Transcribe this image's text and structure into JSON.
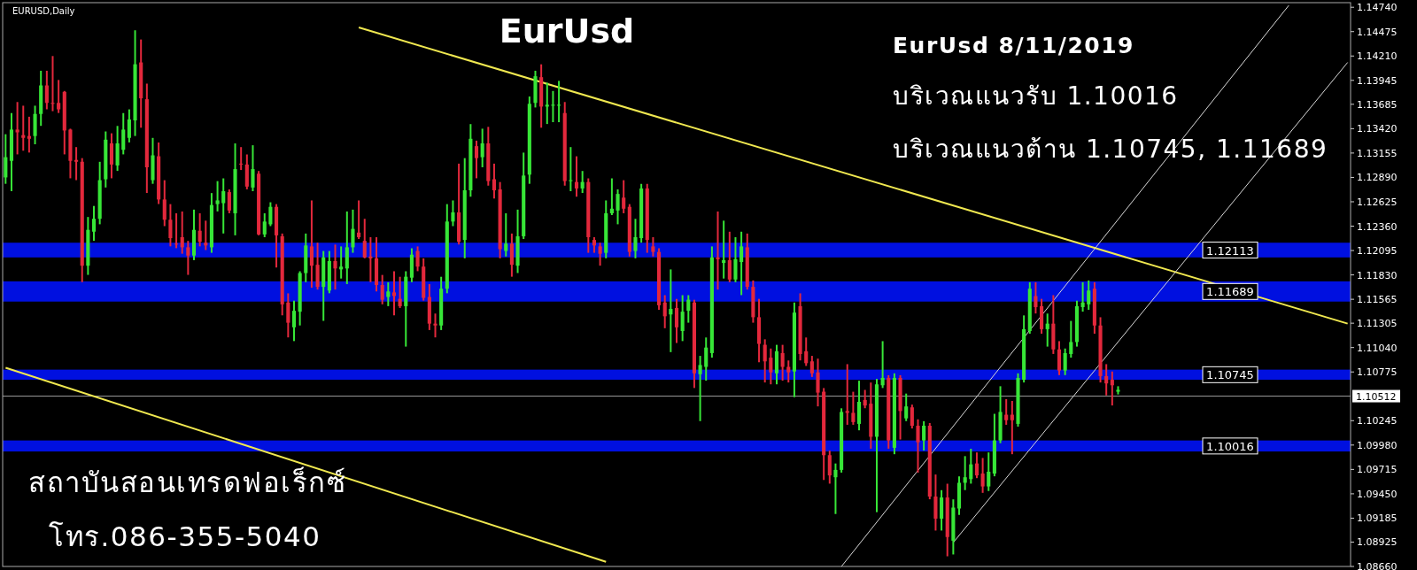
{
  "chart_data": {
    "type": "candlestick",
    "title": "EurUsd",
    "categories": [
      null,
      null,
      null,
      null,
      null,
      null,
      null,
      null,
      null,
      null,
      null,
      null,
      null,
      null,
      null,
      null,
      null,
      null,
      null,
      null,
      null,
      null,
      null,
      null,
      null,
      null,
      null,
      null,
      null,
      null,
      null,
      null,
      null,
      null,
      null,
      null,
      null,
      null,
      null,
      null,
      null,
      null,
      null,
      null,
      null,
      null,
      null,
      null,
      null,
      null,
      null,
      null,
      null,
      null,
      null,
      null,
      null,
      null,
      null,
      null,
      null,
      null,
      null,
      null,
      null,
      null,
      null,
      null,
      null,
      null,
      null,
      null,
      null,
      null,
      null,
      null,
      null,
      null,
      null,
      null,
      null,
      null,
      null,
      null,
      null,
      null,
      null,
      null,
      null,
      null,
      null,
      null,
      null,
      null,
      null,
      null,
      null,
      null,
      null,
      null,
      null,
      null,
      null,
      null,
      null,
      null,
      null,
      null,
      null,
      null,
      null,
      null,
      null,
      null,
      null,
      null,
      null,
      null,
      null,
      null,
      null,
      null,
      null,
      null,
      null,
      null,
      null,
      null,
      null,
      null,
      null,
      null,
      null,
      null,
      null,
      null,
      null,
      null,
      null,
      null,
      null,
      null,
      null,
      null,
      null,
      null,
      null,
      null,
      null,
      null,
      null,
      null,
      null,
      null,
      null,
      null,
      null,
      null,
      null,
      null,
      null,
      null,
      null,
      null,
      null,
      null,
      null,
      null,
      null,
      null,
      null,
      null,
      null,
      null,
      null,
      null,
      null,
      null,
      null,
      null,
      null,
      null,
      null,
      null,
      null,
      null,
      null,
      null,
      null,
      null,
      null,
      null,
      null,
      null,
      null,
      null,
      null,
      null,
      null,
      null,
      null,
      null,
      null,
      null,
      null,
      null,
      null,
      null,
      null,
      null,
      null,
      null,
      null,
      null,
      null,
      null,
      null,
      null,
      null,
      null,
      null,
      null,
      null,
      null,
      null,
      null,
      null,
      null,
      null
    ],
    "ohlc": [
      [
        1.1289,
        1.1335,
        1.1283,
        1.1311
      ],
      [
        1.1307,
        1.1358,
        1.1275,
        1.1341
      ],
      [
        1.1341,
        1.137,
        1.1315,
        1.1338
      ],
      [
        1.1335,
        1.1366,
        1.1319,
        1.1332
      ],
      [
        1.1334,
        1.1354,
        1.1317,
        1.1331
      ],
      [
        1.1334,
        1.1366,
        1.1326,
        1.1358
      ],
      [
        1.1358,
        1.1404,
        1.1346,
        1.1389
      ],
      [
        1.1389,
        1.1404,
        1.1364,
        1.137
      ],
      [
        1.137,
        1.142,
        1.1362,
        1.1369
      ],
      [
        1.137,
        1.1394,
        1.136,
        1.1363
      ],
      [
        1.1382,
        1.1382,
        1.1315,
        1.134
      ],
      [
        1.1341,
        1.1341,
        1.1289,
        1.1307
      ],
      [
        1.1308,
        1.1321,
        1.1287,
        1.1306
      ],
      [
        1.1306,
        1.1309,
        1.1176,
        1.1193
      ],
      [
        1.1193,
        1.1245,
        1.1184,
        1.1232
      ],
      [
        1.123,
        1.1257,
        1.1221,
        1.1244
      ],
      [
        1.1244,
        1.1305,
        1.1239,
        1.1286
      ],
      [
        1.1287,
        1.1338,
        1.1279,
        1.133
      ],
      [
        1.1326,
        1.1336,
        1.1289,
        1.1303
      ],
      [
        1.1302,
        1.1344,
        1.1297,
        1.1326
      ],
      [
        1.1319,
        1.1358,
        1.1315,
        1.1341
      ],
      [
        1.1332,
        1.1362,
        1.1328,
        1.1352
      ],
      [
        1.1351,
        1.1448,
        1.1335,
        1.1412
      ],
      [
        1.1414,
        1.1438,
        1.1344,
        1.1375
      ],
      [
        1.1374,
        1.139,
        1.1273,
        1.13
      ],
      [
        1.1286,
        1.1331,
        1.1283,
        1.1313
      ],
      [
        1.1312,
        1.1326,
        1.1261,
        1.1265
      ],
      [
        1.1265,
        1.1285,
        1.1237,
        1.1243
      ],
      [
        1.1243,
        1.1259,
        1.1215,
        1.1223
      ],
      [
        1.1217,
        1.1249,
        1.1213,
        1.1216
      ],
      [
        1.1224,
        1.1251,
        1.1207,
        1.1213
      ],
      [
        1.1213,
        1.1219,
        1.1184,
        1.1204
      ],
      [
        1.1204,
        1.1253,
        1.12,
        1.1232
      ],
      [
        1.1231,
        1.1249,
        1.1215,
        1.1219
      ],
      [
        1.1218,
        1.1241,
        1.1211,
        1.1215
      ],
      [
        1.1213,
        1.1271,
        1.1208,
        1.1259
      ],
      [
        1.126,
        1.1284,
        1.1253,
        1.1264
      ],
      [
        1.1261,
        1.1287,
        1.1229,
        1.1274
      ],
      [
        1.1273,
        1.1275,
        1.1251,
        1.1253
      ],
      [
        1.125,
        1.1325,
        1.1227,
        1.1298
      ],
      [
        1.1304,
        1.1321,
        1.1298,
        1.1303
      ],
      [
        1.1303,
        1.1313,
        1.1277,
        1.1279
      ],
      [
        1.1278,
        1.1323,
        1.1275,
        1.1298
      ],
      [
        1.1293,
        1.1295,
        1.1227,
        1.1227
      ],
      [
        1.1227,
        1.1249,
        1.1225,
        1.1241
      ],
      [
        1.1238,
        1.1261,
        1.1237,
        1.1257
      ],
      [
        1.1257,
        1.1259,
        1.1192,
        1.1226
      ],
      [
        1.1225,
        1.1227,
        1.114,
        1.1151
      ],
      [
        1.1153,
        1.1162,
        1.1116,
        1.1131
      ],
      [
        1.1126,
        1.1154,
        1.1112,
        1.1144
      ],
      [
        1.1143,
        1.1186,
        1.1129,
        1.1185
      ],
      [
        1.1185,
        1.1227,
        1.1176,
        1.1215
      ],
      [
        1.1214,
        1.1263,
        1.117,
        1.1193
      ],
      [
        1.1194,
        1.1217,
        1.1168,
        1.117
      ],
      [
        1.117,
        1.1208,
        1.1134,
        1.1202
      ],
      [
        1.1166,
        1.1208,
        1.1164,
        1.1198
      ],
      [
        1.1198,
        1.1215,
        1.1168,
        1.119
      ],
      [
        1.1189,
        1.1213,
        1.118,
        1.1192
      ],
      [
        1.119,
        1.1251,
        1.1174,
        1.1213
      ],
      [
        1.1213,
        1.1253,
        1.1208,
        1.1233
      ],
      [
        1.1229,
        1.1263,
        1.1223,
        1.1224
      ],
      [
        1.122,
        1.1243,
        1.1202,
        1.1202
      ],
      [
        1.1203,
        1.1223,
        1.1176,
        1.1201
      ],
      [
        1.1201,
        1.1223,
        1.1166,
        1.1172
      ],
      [
        1.1172,
        1.1182,
        1.1152,
        1.1156
      ],
      [
        1.1159,
        1.1174,
        1.115,
        1.1165
      ],
      [
        1.1164,
        1.1186,
        1.114,
        1.116
      ],
      [
        1.1157,
        1.118,
        1.1148,
        1.1149
      ],
      [
        1.1149,
        1.1186,
        1.1106,
        1.1181
      ],
      [
        1.118,
        1.1211,
        1.1176,
        1.1205
      ],
      [
        1.1209,
        1.1213,
        1.1188,
        1.1192
      ],
      [
        1.1192,
        1.12,
        1.1156,
        1.1158
      ],
      [
        1.1159,
        1.1172,
        1.1124,
        1.113
      ],
      [
        1.113,
        1.114,
        1.1116,
        1.1128
      ],
      [
        1.1128,
        1.118,
        1.1124,
        1.1168
      ],
      [
        1.1168,
        1.1259,
        1.1164,
        1.1241
      ],
      [
        1.1241,
        1.1263,
        1.1237,
        1.1251
      ],
      [
        1.1251,
        1.1303,
        1.1217,
        1.1219
      ],
      [
        1.1221,
        1.1309,
        1.1202,
        1.1275
      ],
      [
        1.1275,
        1.1346,
        1.1269,
        1.1331
      ],
      [
        1.1323,
        1.1328,
        1.1289,
        1.131
      ],
      [
        1.1311,
        1.1341,
        1.1301,
        1.1326
      ],
      [
        1.1326,
        1.1343,
        1.1281,
        1.1285
      ],
      [
        1.1287,
        1.1303,
        1.1267,
        1.1275
      ],
      [
        1.1276,
        1.1283,
        1.1202,
        1.1211
      ],
      [
        1.1209,
        1.1249,
        1.1204,
        1.1217
      ],
      [
        1.1217,
        1.1227,
        1.1182,
        1.1194
      ],
      [
        1.1193,
        1.1253,
        1.1186,
        1.1225
      ],
      [
        1.1225,
        1.1315,
        1.1223,
        1.1291
      ],
      [
        1.1292,
        1.1376,
        1.1283,
        1.1369
      ],
      [
        1.137,
        1.1404,
        1.1366,
        1.1399
      ],
      [
        1.1398,
        1.1411,
        1.1344,
        1.1366
      ],
      [
        1.1366,
        1.1391,
        1.1348,
        1.1368
      ],
      [
        1.1367,
        1.1382,
        1.135,
        1.1368
      ],
      [
        1.1367,
        1.1393,
        1.135,
        1.1368
      ],
      [
        1.1359,
        1.137,
        1.1281,
        1.1285
      ],
      [
        1.1285,
        1.1321,
        1.1275,
        1.1286
      ],
      [
        1.1284,
        1.1311,
        1.1269,
        1.1277
      ],
      [
        1.1277,
        1.1295,
        1.1273,
        1.1284
      ],
      [
        1.1284,
        1.1287,
        1.1208,
        1.1224
      ],
      [
        1.1221,
        1.1223,
        1.1208,
        1.1215
      ],
      [
        1.1214,
        1.1217,
        1.1194,
        1.1206
      ],
      [
        1.1207,
        1.1263,
        1.1202,
        1.125
      ],
      [
        1.125,
        1.1287,
        1.1249,
        1.1255
      ],
      [
        1.1253,
        1.1275,
        1.1239,
        1.1271
      ],
      [
        1.1267,
        1.1285,
        1.1251,
        1.1255
      ],
      [
        1.1257,
        1.1259,
        1.1204,
        1.1208
      ],
      [
        1.1209,
        1.1243,
        1.1202,
        1.1224
      ],
      [
        1.1223,
        1.1281,
        1.1219,
        1.1277
      ],
      [
        1.1277,
        1.1281,
        1.1208,
        1.1221
      ],
      [
        1.1214,
        1.1223,
        1.1204,
        1.1208
      ],
      [
        1.1208,
        1.1211,
        1.1146,
        1.115
      ],
      [
        1.1153,
        1.116,
        1.1126,
        1.1138
      ],
      [
        1.114,
        1.1188,
        1.11,
        1.1146
      ],
      [
        1.1147,
        1.1156,
        1.111,
        1.1126
      ],
      [
        1.1122,
        1.116,
        1.1112,
        1.1143
      ],
      [
        1.1144,
        1.116,
        1.1132,
        1.1156
      ],
      [
        1.1153,
        1.1155,
        1.1061,
        1.1076
      ],
      [
        1.1075,
        1.1094,
        1.1025,
        1.1085
      ],
      [
        1.1083,
        1.1114,
        1.1069,
        1.1104
      ],
      [
        1.1098,
        1.1213,
        1.1094,
        1.1202
      ],
      [
        1.1202,
        1.1251,
        1.1168,
        1.12
      ],
      [
        1.1196,
        1.1241,
        1.118,
        1.1199
      ],
      [
        1.1199,
        1.1229,
        1.1176,
        1.1178
      ],
      [
        1.1178,
        1.1223,
        1.1176,
        1.12
      ],
      [
        1.1197,
        1.1229,
        1.1162,
        1.1214
      ],
      [
        1.1213,
        1.1227,
        1.1168,
        1.117
      ],
      [
        1.117,
        1.1176,
        1.1132,
        1.1137
      ],
      [
        1.1137,
        1.1156,
        1.1089,
        1.1108
      ],
      [
        1.1107,
        1.1112,
        1.1067,
        1.1089
      ],
      [
        1.1093,
        1.1102,
        1.1065,
        1.1077
      ],
      [
        1.1076,
        1.1106,
        1.1065,
        1.11
      ],
      [
        1.1098,
        1.1106,
        1.1069,
        1.1083
      ],
      [
        1.1083,
        1.1089,
        1.1067,
        1.1077
      ],
      [
        1.1078,
        1.1152,
        1.1051,
        1.1142
      ],
      [
        1.1149,
        1.1162,
        1.1091,
        1.1097
      ],
      [
        1.11,
        1.1114,
        1.1085,
        1.1087
      ],
      [
        1.1089,
        1.1094,
        1.1073,
        1.1076
      ],
      [
        1.1077,
        1.1091,
        1.1041,
        1.1055
      ],
      [
        1.1056,
        1.1059,
        1.0961,
        1.0987
      ],
      [
        1.0987,
        1.0991,
        1.0957,
        1.0965
      ],
      [
        1.0963,
        1.0977,
        1.0924,
        1.0971
      ],
      [
        1.0971,
        1.1037,
        1.0969,
        1.1034
      ],
      [
        1.1035,
        1.1085,
        1.1021,
        1.1033
      ],
      [
        1.1033,
        1.1055,
        1.1021,
        1.1023
      ],
      [
        1.1021,
        1.1067,
        1.1015,
        1.1045
      ],
      [
        1.1047,
        1.1057,
        1.1039,
        1.1041
      ],
      [
        1.1043,
        1.1065,
        1.0995,
        1.1007
      ],
      [
        1.1007,
        1.1069,
        1.0926,
        1.1064
      ],
      [
        1.1063,
        1.111,
        1.1061,
        1.1071
      ],
      [
        1.1071,
        1.1073,
        1.0995,
        1.1003
      ],
      [
        1.0995,
        1.1075,
        1.0989,
        1.1071
      ],
      [
        1.1071,
        1.1073,
        1.1005,
        1.1035
      ],
      [
        1.1027,
        1.1053,
        1.1025,
        1.104
      ],
      [
        1.1039,
        1.1041,
        1.1017,
        1.1019
      ],
      [
        1.1019,
        1.1025,
        1.0969,
        1.1001
      ],
      [
        1.1003,
        1.1023,
        1.0993,
        1.1019
      ],
      [
        1.1019,
        1.1021,
        1.094,
        1.0942
      ],
      [
        1.0942,
        1.0965,
        1.0906,
        1.0918
      ],
      [
        1.0918,
        1.0948,
        1.0906,
        1.0941
      ],
      [
        1.0941,
        1.0955,
        1.0878,
        1.0898
      ],
      [
        1.0894,
        1.0938,
        1.088,
        1.093
      ],
      [
        1.0929,
        1.0963,
        1.0923,
        1.0957
      ],
      [
        1.0957,
        1.0985,
        1.095,
        1.0963
      ],
      [
        1.0961,
        1.0993,
        1.0957,
        1.0977
      ],
      [
        1.0978,
        1.0989,
        1.0963,
        1.0965
      ],
      [
        1.0967,
        1.0983,
        1.0947,
        1.0953
      ],
      [
        1.0953,
        1.0989,
        1.0949,
        1.0969
      ],
      [
        1.0967,
        1.1031,
        1.0965,
        1.1003
      ],
      [
        1.1003,
        1.1061,
        1.1001,
        1.1034
      ],
      [
        1.1031,
        1.1047,
        1.1021,
        1.1025
      ],
      [
        1.1031,
        1.1045,
        1.0989,
        1.1025
      ],
      [
        1.1021,
        1.1075,
        1.1019,
        1.1071
      ],
      [
        1.1069,
        1.1138,
        1.1067,
        1.1124
      ],
      [
        1.1122,
        1.1174,
        1.112,
        1.1168
      ],
      [
        1.116,
        1.1174,
        1.1142,
        1.1148
      ],
      [
        1.1149,
        1.1156,
        1.112,
        1.1124
      ],
      [
        1.1124,
        1.114,
        1.1106,
        1.113
      ],
      [
        1.113,
        1.116,
        1.1098,
        1.1102
      ],
      [
        1.1102,
        1.111,
        1.1075,
        1.1079
      ],
      [
        1.1079,
        1.1102,
        1.1075,
        1.1098
      ],
      [
        1.1097,
        1.1132,
        1.1094,
        1.111
      ],
      [
        1.111,
        1.1154,
        1.1106,
        1.1149
      ],
      [
        1.1148,
        1.1174,
        1.1144,
        1.1153
      ],
      [
        1.1151,
        1.1176,
        1.1146,
        1.1166
      ],
      [
        1.1168,
        1.1174,
        1.112,
        1.1128
      ],
      [
        1.1128,
        1.1136,
        1.1067,
        1.1073
      ],
      [
        1.1073,
        1.1085,
        1.1053,
        1.1065
      ],
      [
        1.1069,
        1.1077,
        1.1042,
        1.1063
      ],
      [
        1.1056,
        1.1061,
        1.1054,
        1.1058
      ],
      null,
      null,
      null,
      null,
      null,
      null,
      null,
      null,
      null,
      null,
      null,
      null,
      null,
      null,
      null,
      null,
      null,
      null,
      null,
      null,
      null,
      null,
      null,
      null,
      null,
      null,
      null,
      null,
      null,
      null,
      null,
      null,
      null,
      null,
      null,
      null,
      null,
      null,
      null
    ],
    "series": [
      {
        "type": "line",
        "color": "#f0e850",
        "values": [
          null,
          null,
          null,
          null,
          null,
          null,
          null,
          null,
          null,
          null,
          null,
          null,
          null,
          null,
          null,
          null,
          null,
          null,
          null,
          null,
          null,
          null,
          null,
          null,
          null,
          null,
          null,
          null,
          null,
          null,
          null,
          null,
          null,
          null,
          null,
          null,
          null,
          null,
          null,
          null,
          null,
          null,
          null,
          null,
          null,
          null,
          null,
          null,
          null,
          null,
          null,
          null,
          null,
          null,
          null,
          null,
          null,
          null,
          null,
          null,
          1.1452,
          null,
          null,
          null,
          null,
          null,
          null,
          null,
          null,
          null,
          null,
          null,
          null,
          null,
          null,
          null,
          null,
          null,
          null,
          null,
          null,
          null,
          null,
          null,
          null,
          null,
          null,
          null,
          null,
          null,
          null,
          null,
          null,
          null,
          null,
          null,
          null,
          null,
          null,
          null,
          null,
          null,
          null,
          null,
          null,
          null,
          null,
          null,
          null,
          null,
          null,
          null,
          null,
          null,
          null,
          null,
          null,
          null,
          null,
          null,
          null,
          null,
          null,
          null,
          null,
          null,
          null,
          null,
          null,
          null,
          null,
          null,
          null,
          null,
          null,
          null,
          null,
          null,
          null,
          null,
          null,
          null,
          null,
          null,
          null,
          null,
          null,
          null,
          null,
          null,
          null,
          null,
          null,
          null,
          null,
          null,
          null,
          null,
          null,
          null,
          null,
          null,
          null,
          null,
          null,
          null,
          null,
          null,
          null,
          null,
          null,
          null,
          null,
          null,
          null,
          null,
          null,
          null,
          null,
          null,
          null,
          null,
          null,
          null,
          null,
          null,
          null,
          null,
          null,
          null,
          null,
          null,
          null,
          null,
          null,
          null,
          null,
          null,
          null,
          null,
          null,
          null,
          null,
          null,
          null,
          null,
          null,
          null,
          null,
          null,
          null,
          null,
          null,
          null,
          null,
          null,
          null,
          null,
          null,
          null,
          null,
          null,
          null,
          null,
          null,
          null,
          null,
          null,
          1.113
        ]
      },
      {
        "type": "line",
        "color": "#f0e850",
        "values": [
          1.1082,
          null,
          null,
          null,
          null,
          null,
          null,
          null,
          null,
          null,
          null,
          null,
          null,
          null,
          null,
          null,
          null,
          null,
          null,
          null,
          null,
          null,
          null,
          null,
          null,
          null,
          null,
          null,
          null,
          null,
          null,
          null,
          null,
          null,
          null,
          null,
          null,
          null,
          null,
          null,
          null,
          null,
          null,
          null,
          null,
          null,
          null,
          null,
          null,
          null,
          null,
          null,
          null,
          null,
          null,
          null,
          null,
          null,
          null,
          null,
          null,
          null,
          null,
          null,
          null,
          null,
          null,
          null,
          null,
          null,
          null,
          null,
          null,
          null,
          null,
          null,
          null,
          null,
          null,
          null,
          null,
          null,
          null,
          null,
          null,
          null,
          null,
          null,
          null,
          null,
          null,
          null,
          null,
          null,
          null,
          null,
          null,
          null,
          null,
          null,
          null,
          null,
          1.0871,
          null,
          null,
          null,
          null,
          null,
          null,
          null,
          null,
          null,
          null,
          null,
          null,
          null,
          null,
          null,
          null,
          null,
          null,
          null,
          null,
          null,
          null,
          null,
          null,
          null,
          null,
          null,
          null,
          null,
          null,
          null,
          null,
          null,
          null,
          null,
          null,
          null,
          null,
          null,
          null,
          null,
          null,
          null,
          null,
          null,
          null,
          null,
          null,
          null,
          null,
          null,
          null,
          null,
          null,
          null,
          null,
          null,
          null,
          null,
          null,
          null,
          null,
          null,
          null,
          null,
          null,
          null,
          null,
          null,
          null,
          null,
          null,
          null,
          null,
          null,
          null,
          null,
          null,
          null,
          null,
          null,
          null,
          null,
          null,
          null,
          null,
          null,
          null,
          null,
          null,
          null,
          null,
          null,
          null,
          null,
          null,
          null,
          null,
          null,
          null,
          null,
          null,
          null,
          null,
          null,
          null,
          null,
          null,
          null,
          null,
          null,
          null,
          null,
          null,
          null,
          null,
          null,
          null,
          null,
          null,
          null,
          null,
          null,
          null,
          null,
          null
        ]
      },
      {
        "type": "line",
        "color": "#d8d8d8",
        "values": [
          null,
          null,
          null,
          null,
          null,
          null,
          null,
          null,
          null,
          null,
          null,
          null,
          null,
          null,
          null,
          null,
          null,
          null,
          null,
          null,
          null,
          null,
          null,
          null,
          null,
          null,
          null,
          null,
          null,
          null,
          null,
          null,
          null,
          null,
          null,
          null,
          null,
          null,
          null,
          null,
          null,
          null,
          null,
          null,
          null,
          null,
          null,
          null,
          null,
          null,
          null,
          null,
          null,
          null,
          null,
          null,
          null,
          null,
          null,
          null,
          null,
          null,
          null,
          null,
          null,
          null,
          null,
          null,
          null,
          null,
          null,
          null,
          null,
          null,
          null,
          null,
          null,
          null,
          null,
          null,
          null,
          null,
          null,
          null,
          null,
          null,
          null,
          null,
          null,
          null,
          null,
          null,
          null,
          null,
          null,
          null,
          null,
          null,
          null,
          null,
          null,
          null,
          null,
          null,
          null,
          null,
          null,
          null,
          null,
          null,
          null,
          null,
          null,
          null,
          null,
          null,
          null,
          null,
          null,
          null,
          null,
          null,
          null,
          null,
          null,
          null,
          null,
          null,
          null,
          null,
          null,
          null,
          null,
          null,
          null,
          null,
          null,
          null,
          null,
          null,
          null,
          null,
          1.0866,
          null,
          null,
          null,
          null,
          null,
          null,
          null,
          null,
          null,
          null,
          null,
          null,
          null,
          null,
          null,
          null,
          null,
          null,
          null,
          null,
          null,
          null,
          null,
          null,
          null,
          null,
          null,
          null,
          null,
          null,
          null,
          null,
          null,
          null,
          null,
          null,
          null,
          null,
          null,
          null,
          null,
          null,
          null,
          null,
          null,
          null,
          null,
          null,
          null,
          null,
          null,
          null,
          null,
          null,
          null,
          null,
          null,
          null,
          null,
          null,
          null,
          null,
          null,
          null,
          null,
          null,
          null,
          null,
          null,
          null,
          null,
          null,
          null,
          null,
          null,
          1.1476,
          null,
          null,
          null,
          null,
          null,
          null,
          null,
          null,
          null,
          null
        ]
      },
      {
        "type": "line",
        "color": "#d8d8d8",
        "values": [
          null,
          null,
          null,
          null,
          null,
          null,
          null,
          null,
          null,
          null,
          null,
          null,
          null,
          null,
          null,
          null,
          null,
          null,
          null,
          null,
          null,
          null,
          null,
          null,
          null,
          null,
          null,
          null,
          null,
          null,
          null,
          null,
          null,
          null,
          null,
          null,
          null,
          null,
          null,
          null,
          null,
          null,
          null,
          null,
          null,
          null,
          null,
          null,
          null,
          null,
          null,
          null,
          null,
          null,
          null,
          null,
          null,
          null,
          null,
          null,
          null,
          null,
          null,
          null,
          null,
          null,
          null,
          null,
          null,
          null,
          null,
          null,
          null,
          null,
          null,
          null,
          null,
          null,
          null,
          null,
          null,
          null,
          null,
          null,
          null,
          null,
          null,
          null,
          null,
          null,
          null,
          null,
          null,
          null,
          null,
          null,
          null,
          null,
          null,
          null,
          null,
          null,
          null,
          null,
          null,
          null,
          null,
          null,
          null,
          null,
          null,
          null,
          null,
          null,
          null,
          null,
          null,
          null,
          null,
          null,
          null,
          null,
          null,
          null,
          null,
          null,
          null,
          null,
          null,
          null,
          null,
          null,
          null,
          null,
          null,
          null,
          null,
          null,
          null,
          null,
          null,
          null,
          null,
          null,
          null,
          null,
          null,
          null,
          null,
          null,
          null,
          null,
          null,
          null,
          null,
          null,
          null,
          null,
          null,
          null,
          null,
          1.0892,
          null,
          null,
          null,
          null,
          null,
          null,
          null,
          null,
          null,
          null,
          null,
          null,
          null,
          null,
          null,
          null,
          null,
          null,
          null,
          null,
          null,
          null,
          null,
          null,
          null,
          null,
          null,
          null,
          null,
          null,
          null,
          null,
          null,
          null,
          null,
          null,
          null,
          null,
          null,
          null,
          null,
          null,
          null,
          null,
          null,
          null,
          null,
          null,
          null,
          null,
          null,
          null,
          null,
          null,
          null,
          null,
          null,
          null,
          null,
          null,
          null,
          null,
          null,
          null,
          null,
          null,
          1.1414
        ]
      }
    ],
    "bands": [
      {
        "axis": "y",
        "from": 1.1202,
        "to": 1.1218,
        "label": "1.12113",
        "color": "#0010e0"
      },
      {
        "axis": "y",
        "from": 1.1154,
        "to": 1.1176,
        "label": "1.11689",
        "color": "#0010e0"
      },
      {
        "axis": "y",
        "from": 1.1069,
        "to": 1.108,
        "label": "1.10745",
        "color": "#0010e0"
      },
      {
        "axis": "y",
        "from": 1.0991,
        "to": 1.1003,
        "label": "1.10016",
        "color": "#0010e0"
      }
    ],
    "ref_lines": [
      {
        "axis": "y",
        "value": 1.10512,
        "label": "1.10512",
        "color": "#9a9a9a"
      }
    ],
    "ylim": [
      1.0866,
      1.1479
    ],
    "yticks": [
      {
        "value": 1.1474,
        "label": "1.14740"
      },
      1.14475,
      {
        "value": 1.1421,
        "label": "1.14210"
      },
      1.13945,
      1.13685,
      {
        "value": 1.1342,
        "label": "1.13420"
      },
      1.13155,
      {
        "value": 1.1289,
        "label": "1.12890"
      },
      1.12625,
      {
        "value": 1.1236,
        "label": "1.12360"
      },
      1.12095,
      {
        "value": 1.1183,
        "label": "1.11830"
      },
      1.11565,
      1.11305,
      {
        "value": 1.1104,
        "label": "1.11040"
      },
      1.10775,
      1.10245,
      {
        "value": 1.0998,
        "label": "1.09980"
      },
      1.09715,
      {
        "value": 1.0945,
        "label": "1.09450"
      },
      1.09185,
      1.08925,
      {
        "value": 1.0866,
        "label": "1.08660"
      }
    ],
    "tick_labels": "y",
    "annotations": [
      "EURUSD,Daily",
      "EurUsd 8/11/2019",
      "บริเวณแนวรับ 1.10016",
      "บริเวณแนวต้าน 1.10745, 1.11689",
      "สถาบันสอนเทรดฟอเร็กซ์",
      "โทร.086-355-5040"
    ]
  }
}
